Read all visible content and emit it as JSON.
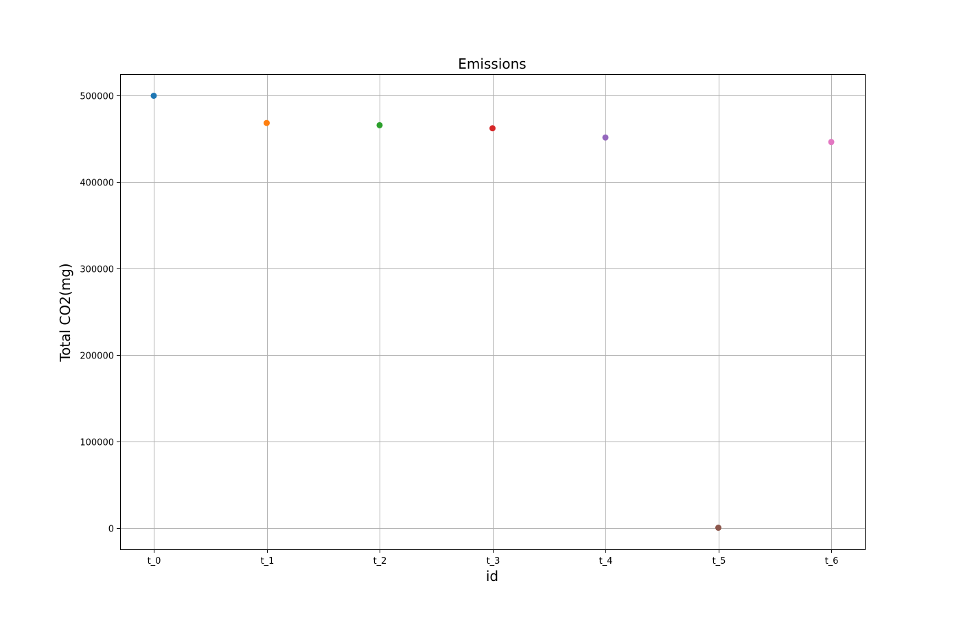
{
  "chart_data": {
    "type": "scatter",
    "title": "Emissions",
    "xlabel": "id",
    "ylabel": "Total CO2(mg)",
    "categories": [
      "t_0",
      "t_1",
      "t_2",
      "t_3",
      "t_4",
      "t_5",
      "t_6"
    ],
    "values": [
      500000,
      468500,
      465900,
      462400,
      451700,
      0,
      446500
    ],
    "point_colors": [
      "#1f77b4",
      "#ff7f0e",
      "#2ca02c",
      "#d62728",
      "#9467bd",
      "#8c564b",
      "#e377c2"
    ],
    "ylim": [
      -25000,
      525000
    ],
    "yticks": [
      0,
      100000,
      200000,
      300000,
      400000,
      500000
    ],
    "ytick_labels": [
      "0",
      "100000",
      "200000",
      "300000",
      "400000",
      "500000"
    ],
    "grid": true,
    "legend": "none"
  }
}
